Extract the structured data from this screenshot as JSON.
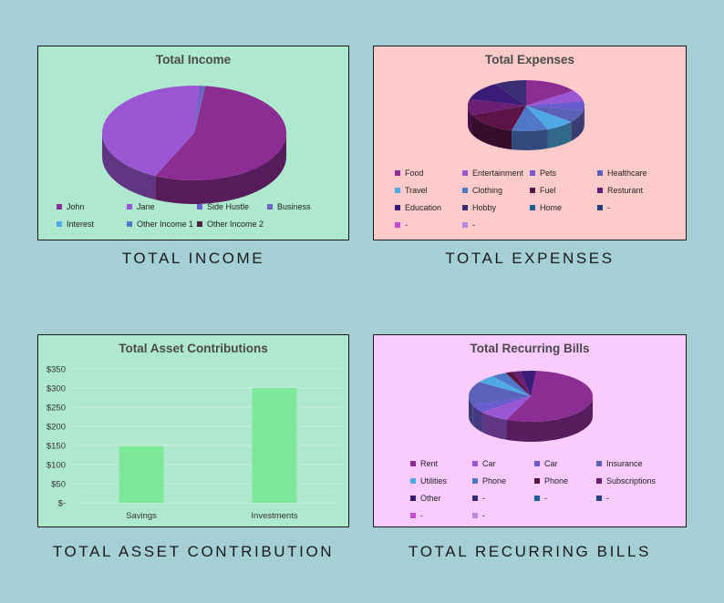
{
  "captions": {
    "income": "TOTAL INCOME",
    "expenses": "TOTAL EXPENSES",
    "assets": "TOTAL ASSET CONTRIBUTION",
    "bills": "TOTAL RECURRING BILLS"
  },
  "colors": {
    "page_bg": "#a3cfd5",
    "income_bg": "#aee8cf",
    "expenses_bg": "#fecbcb",
    "assets_bg": "#aee8cf",
    "bills_bg": "#f9cbff",
    "bar": "#7de89a"
  },
  "chart_data": [
    {
      "id": "income",
      "type": "pie",
      "style": "3d",
      "title": "Total Income",
      "labels": [
        "John",
        "Jane",
        "Side Hustle",
        "Business",
        "Interest",
        "Other Income 1",
        "Other Income 2"
      ],
      "values": [
        55,
        44,
        0.5,
        0.5,
        0,
        0,
        0
      ],
      "colors": [
        "#8b2d92",
        "#9b57d3",
        "#6a5ccf",
        "#6f65bd",
        "#4fa9e4",
        "#4f78c9",
        "#4a1f3f"
      ]
    },
    {
      "id": "expenses",
      "type": "pie",
      "style": "3d",
      "title": "Total Expenses",
      "labels": [
        "Food",
        "Entertainment",
        "Pets",
        "Healthcare",
        "Travel",
        "Clothing",
        "Fuel",
        "Resturant",
        "Education",
        "Hobby",
        "Home",
        "-",
        "-",
        "-"
      ],
      "values": [
        15,
        7,
        6,
        8,
        8,
        10,
        15,
        10,
        12,
        9,
        0,
        0,
        0,
        0
      ],
      "colors": [
        "#8b2d92",
        "#9b57d3",
        "#6a5ccf",
        "#5b61b8",
        "#4fa9e4",
        "#4f78c9",
        "#5b1445",
        "#6a1f74",
        "#3b1b78",
        "#3b2d74",
        "#1f5f9b",
        "#23407a",
        "#c44ad1",
        "#b58ae0"
      ]
    },
    {
      "id": "assets",
      "type": "bar",
      "title": "Total Asset Contributions",
      "categories": [
        "Savings",
        "Investments"
      ],
      "values": [
        148,
        300
      ],
      "ylim": [
        0,
        350
      ],
      "yticks": [
        0,
        50,
        100,
        150,
        200,
        250,
        300,
        350
      ],
      "ytick_labels": [
        "$-",
        "$50",
        "$100",
        "$150",
        "$200",
        "$250",
        "$300",
        "$350"
      ],
      "grid": true
    },
    {
      "id": "bills",
      "type": "pie",
      "style": "3d",
      "title": "Total Recurring Bills",
      "labels": [
        "Rent",
        "Car",
        "Car",
        "Insurance",
        "Utilities",
        "Phone",
        "Phone",
        "Subscriptions",
        "Other",
        "-",
        "-",
        "-",
        "-",
        "-"
      ],
      "values": [
        55,
        8,
        5,
        15,
        5,
        4,
        2,
        2,
        4,
        0,
        0,
        0,
        0,
        0
      ],
      "colors": [
        "#8b2d92",
        "#9b57d3",
        "#6a5ccf",
        "#5b61b8",
        "#4fa9e4",
        "#4f78c9",
        "#5b1445",
        "#6a1f74",
        "#3b1b78",
        "#3b2d74",
        "#1f5f9b",
        "#23407a",
        "#c44ad1",
        "#b58ae0"
      ]
    }
  ]
}
